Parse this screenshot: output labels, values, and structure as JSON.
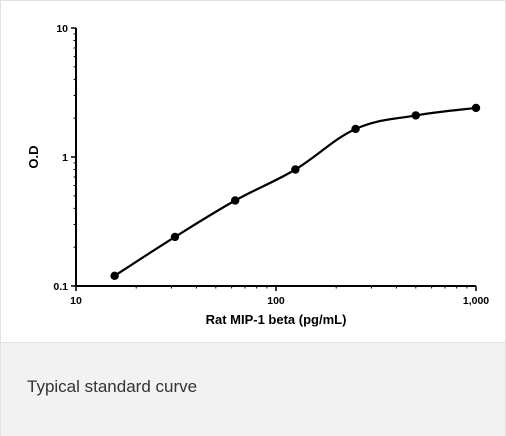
{
  "caption": "Typical standard curve",
  "chart_data": {
    "type": "line",
    "xscale": "log",
    "yscale": "log",
    "xlim": [
      10,
      1000
    ],
    "ylim": [
      0.1,
      10
    ],
    "xlabel": "Rat MIP-1 beta (pg/mL)",
    "ylabel": "O.D",
    "x_ticks": [
      10,
      100,
      1000
    ],
    "x_tick_labels": [
      "10",
      "100",
      "1,000"
    ],
    "y_ticks": [
      0.1,
      1,
      10
    ],
    "y_tick_labels": [
      "0.1",
      "1",
      "10"
    ],
    "grid": false,
    "legend": "none",
    "series": [
      {
        "x": [
          15.6,
          31.25,
          62.5,
          125,
          250,
          500,
          1000
        ],
        "y": [
          0.12,
          0.24,
          0.46,
          0.8,
          1.65,
          2.1,
          2.4
        ],
        "color": "#000000",
        "marker": "circle"
      }
    ]
  }
}
